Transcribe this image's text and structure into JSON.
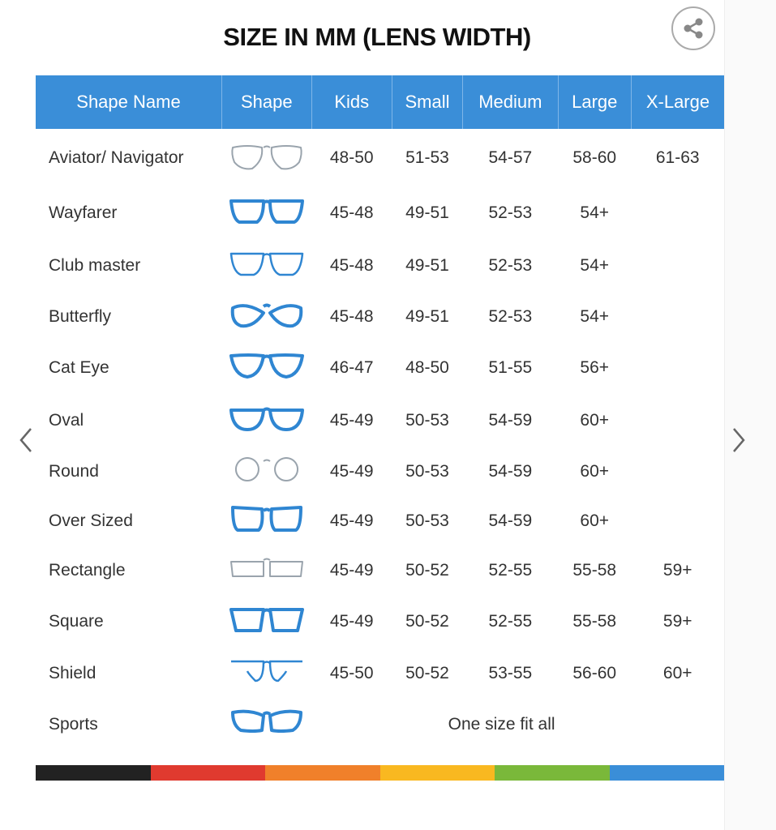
{
  "title": "SIZE IN MM (LENS WIDTH)",
  "share_icon": "share-icon",
  "nav": {
    "prev_icon": "chevron-left-icon",
    "next_icon": "chevron-right-icon"
  },
  "headers": [
    "Shape Name",
    "Shape",
    "Kids",
    "Small",
    "Medium",
    "Large",
    "X-Large"
  ],
  "colors": {
    "header": "#3a8ed8",
    "frame_blue": "#2f86d2",
    "frame_gray": "#9aa4ad"
  },
  "rows": [
    {
      "name": "Aviator/ Navigator",
      "icon": "aviator-glasses-icon",
      "shape": "aviator",
      "tone": "gray",
      "sizes": [
        "48-50",
        "51-53",
        "54-57",
        "58-60",
        "61-63"
      ]
    },
    {
      "name": "Wayfarer",
      "icon": "wayfarer-glasses-icon",
      "shape": "wayfarer",
      "tone": "blue",
      "sizes": [
        "45-48",
        "49-51",
        "52-53",
        "54+",
        ""
      ]
    },
    {
      "name": "Club master",
      "icon": "clubmaster-glasses-icon",
      "shape": "clubmaster",
      "tone": "mixed",
      "sizes": [
        "45-48",
        "49-51",
        "52-53",
        "54+",
        ""
      ]
    },
    {
      "name": "Butterfly",
      "icon": "butterfly-glasses-icon",
      "shape": "butterfly",
      "tone": "blue",
      "sizes": [
        "45-48",
        "49-51",
        "52-53",
        "54+",
        ""
      ]
    },
    {
      "name": "Cat Eye",
      "icon": "cat-eye-glasses-icon",
      "shape": "cateye",
      "tone": "blue",
      "sizes": [
        "46-47",
        "48-50",
        "51-55",
        "56+",
        ""
      ]
    },
    {
      "name": "Oval",
      "icon": "oval-glasses-icon",
      "shape": "oval",
      "tone": "blue",
      "sizes": [
        "45-49",
        "50-53",
        "54-59",
        "60+",
        ""
      ]
    },
    {
      "name": "Round",
      "icon": "round-glasses-icon",
      "shape": "round",
      "tone": "gray",
      "sizes": [
        "45-49",
        "50-53",
        "54-59",
        "60+",
        ""
      ]
    },
    {
      "name": "Over Sized",
      "icon": "oversized-glasses-icon",
      "shape": "oversized",
      "tone": "blue",
      "sizes": [
        "45-49",
        "50-53",
        "54-59",
        "60+",
        ""
      ]
    },
    {
      "name": "Rectangle",
      "icon": "rectangle-glasses-icon",
      "shape": "rectangle",
      "tone": "gray",
      "sizes": [
        "45-49",
        "50-52",
        "52-55",
        "55-58",
        "59+"
      ]
    },
    {
      "name": "Square",
      "icon": "square-glasses-icon",
      "shape": "square",
      "tone": "blue",
      "sizes": [
        "45-49",
        "50-52",
        "52-55",
        "55-58",
        "59+"
      ]
    },
    {
      "name": "Shield",
      "icon": "shield-glasses-icon",
      "shape": "shield",
      "tone": "mixed",
      "sizes": [
        "45-50",
        "50-52",
        "53-55",
        "56-60",
        "60+"
      ]
    },
    {
      "name": "Sports",
      "icon": "sports-glasses-icon",
      "shape": "sports",
      "tone": "blue",
      "sizes_note": "One size fit all"
    }
  ],
  "color_bar": [
    "#222222",
    "#e03a2f",
    "#f0802a",
    "#f9b820",
    "#7ab83a",
    "#3a8ed8"
  ]
}
